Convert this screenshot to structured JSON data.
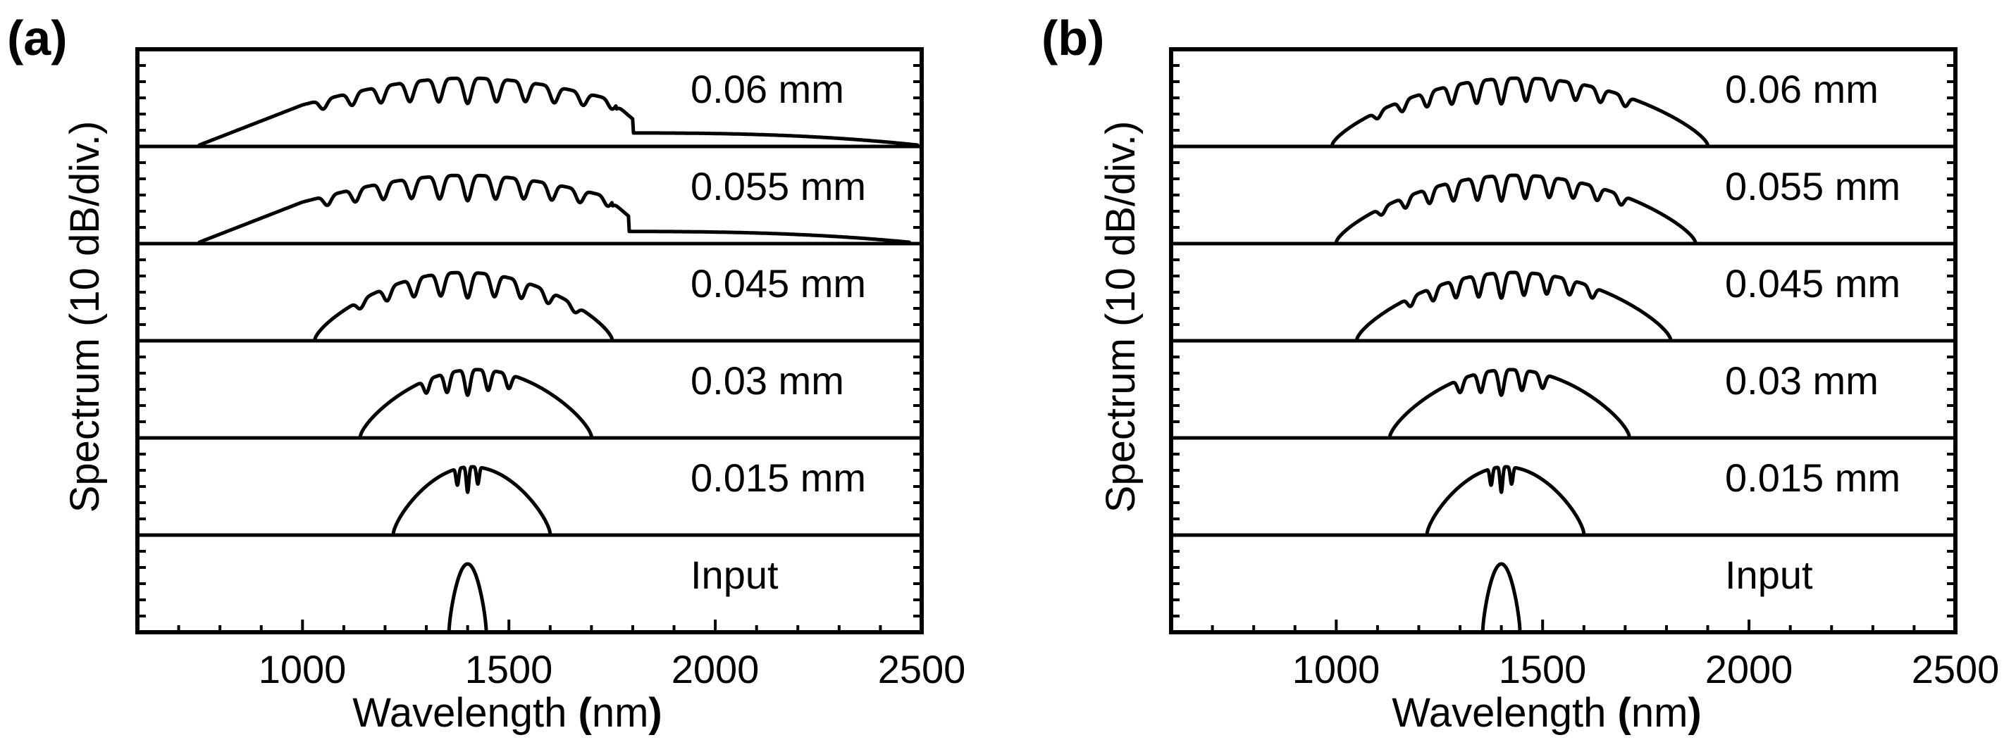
{
  "chart_data": [
    {
      "type": "line",
      "panel_label": "(a)",
      "xlabel_main": "Wavelength",
      "xlabel_unit_open": "(",
      "xlabel_unit": "nm",
      "xlabel_unit_close": ")",
      "ylabel": "Spectrum (10 dB/div.)",
      "xlim": [
        600,
        2500
      ],
      "x_ticks": [
        1000,
        1500,
        2000,
        2500
      ],
      "x_tick_labels": [
        "1000",
        "1500",
        "2000",
        "2500"
      ],
      "subplots": [
        {
          "label": "0.06 mm",
          "spectrum": {
            "start": 750,
            "end": 2490,
            "dip_center": 1400,
            "dip_spacing": 70,
            "dip_count": 5,
            "shoulder_right": 1800,
            "shoulder_level": 0.18
          }
        },
        {
          "label": "0.055 mm",
          "spectrum": {
            "start": 750,
            "end": 2470,
            "dip_center": 1400,
            "dip_spacing": 68,
            "dip_count": 5,
            "shoulder_right": 1790,
            "shoulder_level": 0.16
          }
        },
        {
          "label": "0.045 mm",
          "spectrum": {
            "start": 1030,
            "end": 1750,
            "dip_center": 1400,
            "dip_spacing": 65,
            "dip_count": 4
          }
        },
        {
          "label": "0.03 mm",
          "spectrum": {
            "start": 1140,
            "end": 1700,
            "dip_center": 1400,
            "dip_spacing": 50,
            "dip_count": 2
          }
        },
        {
          "label": "0.015 mm",
          "spectrum": {
            "start": 1220,
            "end": 1600,
            "dip_center": 1400,
            "dip_spacing": 25,
            "dip_count": 1
          }
        },
        {
          "label": "Input",
          "spectrum": {
            "start": 1355,
            "end": 1445,
            "dip_center": 1400,
            "dip_spacing": 0,
            "dip_count": 0
          }
        }
      ]
    },
    {
      "type": "line",
      "panel_label": "(b)",
      "xlabel_main": "Wavelength",
      "xlabel_unit_open": "(",
      "xlabel_unit": "nm",
      "xlabel_unit_close": ")",
      "ylabel": "Spectrum (10 dB/div.)",
      "xlim": [
        600,
        2500
      ],
      "x_ticks": [
        1000,
        1500,
        2000,
        2500
      ],
      "x_tick_labels": [
        "1000",
        "1500",
        "2000",
        "2500"
      ],
      "subplots": [
        {
          "label": "0.06 mm",
          "spectrum": {
            "start": 990,
            "end": 1900,
            "dip_center": 1400,
            "dip_spacing": 60,
            "dip_count": 5
          }
        },
        {
          "label": "0.055 mm",
          "spectrum": {
            "start": 1000,
            "end": 1870,
            "dip_center": 1400,
            "dip_spacing": 58,
            "dip_count": 5
          }
        },
        {
          "label": "0.045 mm",
          "spectrum": {
            "start": 1050,
            "end": 1810,
            "dip_center": 1400,
            "dip_spacing": 55,
            "dip_count": 4
          }
        },
        {
          "label": "0.03 mm",
          "spectrum": {
            "start": 1130,
            "end": 1710,
            "dip_center": 1400,
            "dip_spacing": 50,
            "dip_count": 2
          }
        },
        {
          "label": "0.015 mm",
          "spectrum": {
            "start": 1220,
            "end": 1600,
            "dip_center": 1400,
            "dip_spacing": 25,
            "dip_count": 1
          }
        },
        {
          "label": "Input",
          "spectrum": {
            "start": 1355,
            "end": 1445,
            "dip_center": 1400,
            "dip_spacing": 0,
            "dip_count": 0
          }
        }
      ]
    }
  ]
}
